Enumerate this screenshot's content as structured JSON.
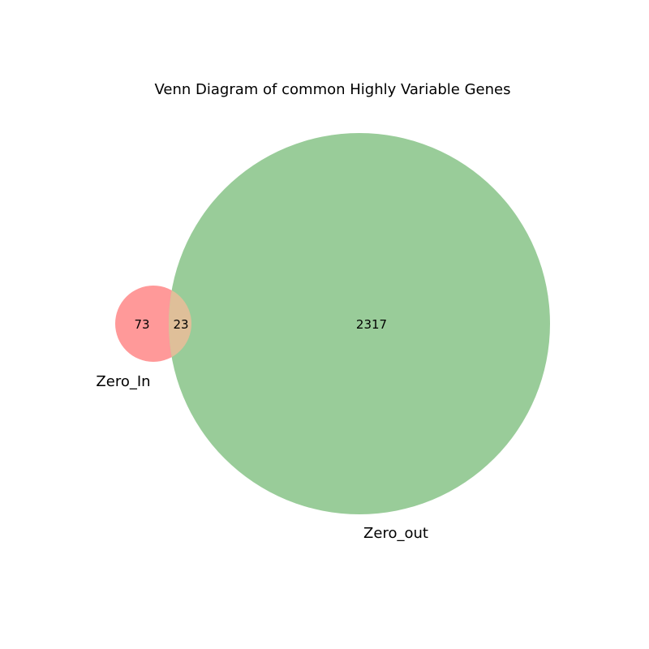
{
  "title": "Venn Diagram of common Highly Variable Genes",
  "colors": {
    "set_a": "#ff9999",
    "set_b": "#99cc99",
    "overlap": "#dfbf99"
  },
  "sets": {
    "a": {
      "label": "Zero_In"
    },
    "b": {
      "label": "Zero_out"
    }
  },
  "regions": {
    "a_only": "73",
    "overlap": "23",
    "b_only": "2317"
  },
  "chart_data": {
    "type": "venn",
    "title": "Venn Diagram of common Highly Variable Genes",
    "sets": [
      "Zero_In",
      "Zero_out"
    ],
    "subsets": {
      "Zero_In_only": 73,
      "Zero_In_and_Zero_out": 23,
      "Zero_out_only": 2317
    }
  }
}
